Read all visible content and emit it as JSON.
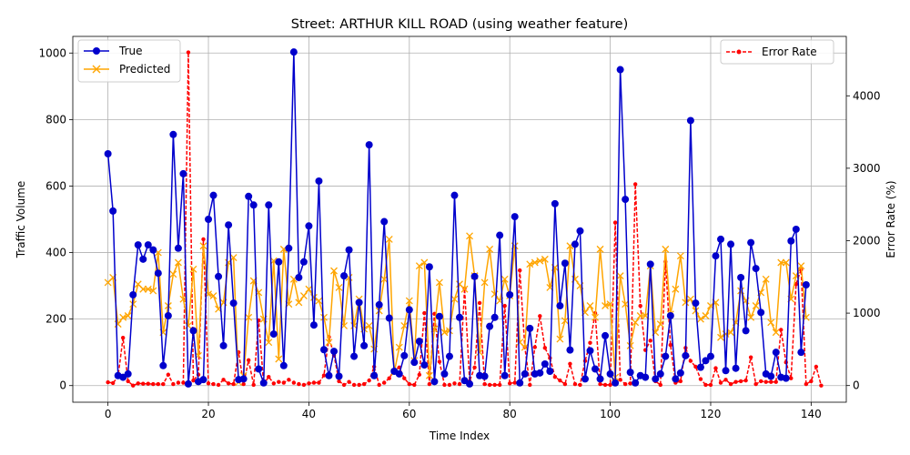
{
  "chart_data": {
    "type": "line",
    "title": "Street: ARTHUR KILL ROAD (using weather feature)",
    "xlabel": "Time Index",
    "ylabel": "Traffic Volume",
    "y2label": "Error Rate (%)",
    "xlim": [
      -7,
      147
    ],
    "ylim": [
      -50,
      1050
    ],
    "y2lim": [
      -230,
      4820
    ],
    "xticks": [
      0,
      20,
      40,
      60,
      80,
      100,
      120,
      140
    ],
    "yticks": [
      0,
      200,
      400,
      600,
      800,
      1000
    ],
    "y2ticks": [
      0,
      1000,
      2000,
      3000,
      4000
    ],
    "grid": true,
    "legend_left": "upper-left",
    "legend_right": "upper-right",
    "series": [
      {
        "name": "True",
        "axis": "left",
        "color": "#0000cc",
        "style": "solid",
        "marker": "circle",
        "values": [
          697,
          525,
          30,
          25,
          35,
          273,
          423,
          380,
          423,
          408,
          338,
          60,
          210,
          755,
          413,
          637,
          5,
          165,
          12,
          18,
          500,
          572,
          328,
          120,
          483,
          248,
          18,
          20,
          569,
          543,
          50,
          8,
          543,
          155,
          372,
          60,
          413,
          1003,
          325,
          372,
          480,
          182,
          615,
          108,
          30,
          103,
          28,
          330,
          408,
          88,
          250,
          120,
          724,
          30,
          243,
          493,
          203,
          43,
          35,
          90,
          228,
          70,
          133,
          62,
          357,
          12,
          208,
          35,
          88,
          572,
          205,
          15,
          5,
          328,
          30,
          28,
          178,
          205,
          452,
          30,
          273,
          508,
          8,
          35,
          172,
          35,
          38,
          65,
          43,
          547,
          240,
          368,
          107,
          425,
          465,
          20,
          105,
          50,
          20,
          150,
          35,
          8,
          950,
          560,
          40,
          8,
          30,
          25,
          365,
          20,
          35,
          88,
          210,
          20,
          38,
          90,
          797,
          248,
          55,
          75,
          88,
          390,
          440,
          45,
          425,
          52,
          325,
          165,
          430,
          352,
          220,
          35,
          28,
          100,
          25,
          22,
          435,
          470,
          100,
          303
        ]
      },
      {
        "name": "Predicted",
        "axis": "left",
        "color": "#ffa500",
        "style": "solid",
        "marker": "x",
        "values": [
          310,
          325,
          185,
          205,
          210,
          245,
          305,
          290,
          290,
          285,
          400,
          160,
          240,
          335,
          370,
          260,
          180,
          350,
          90,
          420,
          275,
          270,
          230,
          250,
          370,
          385,
          10,
          30,
          205,
          315,
          280,
          200,
          130,
          375,
          80,
          410,
          245,
          320,
          250,
          270,
          290,
          265,
          255,
          205,
          130,
          345,
          295,
          180,
          325,
          180,
          260,
          170,
          180,
          110,
          225,
          320,
          440,
          40,
          115,
          180,
          255,
          75,
          360,
          370,
          30,
          170,
          310,
          160,
          165,
          260,
          305,
          290,
          450,
          330,
          100,
          310,
          410,
          275,
          255,
          320,
          270,
          420,
          130,
          115,
          365,
          370,
          375,
          380,
          295,
          355,
          140,
          195,
          420,
          320,
          300,
          220,
          240,
          205,
          410,
          240,
          245,
          25,
          330,
          245,
          120,
          190,
          210,
          210,
          360,
          160,
          185,
          410,
          215,
          290,
          390,
          250,
          260,
          225,
          200,
          210,
          240,
          250,
          145,
          155,
          160,
          190,
          285,
          255,
          205,
          240,
          280,
          320,
          190,
          160,
          370,
          370,
          260,
          330,
          360,
          205
        ]
      },
      {
        "name": "Error Rate",
        "axis": "right",
        "color": "#ff0000",
        "style": "dashed",
        "marker": "dot",
        "values": [
          45,
          35,
          120,
          660,
          60,
          0,
          30,
          25,
          25,
          20,
          20,
          20,
          150,
          20,
          40,
          40,
          4600,
          70,
          150,
          2020,
          30,
          20,
          10,
          80,
          30,
          20,
          460,
          20,
          350,
          10,
          900,
          20,
          120,
          30,
          50,
          40,
          80,
          40,
          20,
          10,
          30,
          40,
          40,
          140,
          670,
          420,
          60,
          10,
          50,
          10,
          10,
          20,
          70,
          260,
          10,
          40,
          100,
          220,
          250,
          100,
          20,
          10,
          150,
          1000,
          20,
          990,
          330,
          10,
          10,
          30,
          20,
          1340,
          60,
          250,
          1140,
          20,
          10,
          10,
          10,
          1100,
          30,
          40,
          1590,
          530,
          10,
          530,
          960,
          520,
          380,
          120,
          70,
          20,
          300,
          20,
          10,
          340,
          590,
          1000,
          20,
          10,
          10,
          2250,
          80,
          20,
          30,
          2780,
          1100,
          490,
          620,
          60,
          10,
          1710,
          560,
          40,
          60,
          520,
          340,
          260,
          90,
          10,
          10,
          240,
          40,
          80,
          20,
          50,
          60,
          70,
          390,
          20,
          60,
          50,
          50,
          50,
          770,
          320,
          100,
          1400,
          1600,
          20,
          60,
          260,
          0
        ]
      }
    ]
  }
}
